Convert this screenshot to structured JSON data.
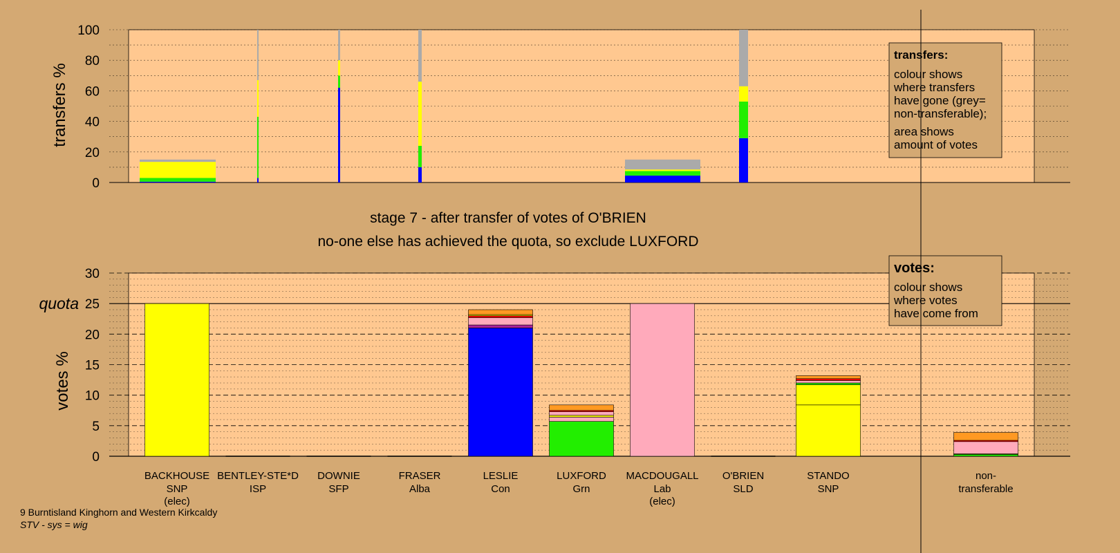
{
  "chart_data": [
    {
      "type": "bar",
      "title": "",
      "ylabel": "transfers %",
      "ylim": [
        0,
        100
      ],
      "yticks": [
        "0",
        "20",
        "40",
        "60",
        "80",
        "100"
      ],
      "stacked": true,
      "colors_meaning": "colour shows where transfers have gone (grey = non-transferable)",
      "bars": [
        {
          "candidate": "BACKHOUSE",
          "width": "wide",
          "segments": [
            {
              "color": "#0000ff",
              "value": 0.5
            },
            {
              "color": "#22ee00",
              "value": 2.5
            },
            {
              "color": "#ffff00",
              "value": 10.5
            },
            {
              "color": "#aaaaaa",
              "value": 1.5
            }
          ]
        },
        {
          "candidate": "BENTLEY-STE*D",
          "width": "thin",
          "segments": [
            {
              "color": "#0000ff",
              "value": 3
            },
            {
              "color": "#22ee00",
              "value": 40
            },
            {
              "color": "#ffff00",
              "value": 24
            },
            {
              "color": "#aaaaaa",
              "value": 33
            }
          ]
        },
        {
          "candidate": "DOWNIE",
          "width": "thin",
          "segments": [
            {
              "color": "#0000ff",
              "value": 62
            },
            {
              "color": "#22ee00",
              "value": 8
            },
            {
              "color": "#ffff00",
              "value": 10
            },
            {
              "color": "#aaaaaa",
              "value": 20
            }
          ]
        },
        {
          "candidate": "FRASER",
          "width": "thin",
          "segments": [
            {
              "color": "#0000ff",
              "value": 10
            },
            {
              "color": "#22ee00",
              "value": 14
            },
            {
              "color": "#ffff00",
              "value": 42
            },
            {
              "color": "#aaaaaa",
              "value": 34
            }
          ]
        },
        {
          "candidate": "MACDOUGALL",
          "width": "wide",
          "segments": [
            {
              "color": "#0000ff",
              "value": 4.5
            },
            {
              "color": "#22ee00",
              "value": 3
            },
            {
              "color": "#ffff00",
              "value": 1
            },
            {
              "color": "#aaaaaa",
              "value": 6.5
            }
          ]
        },
        {
          "candidate": "O'BRIEN",
          "width": "narrow",
          "segments": [
            {
              "color": "#0000ff",
              "value": 29
            },
            {
              "color": "#22ee00",
              "value": 24
            },
            {
              "color": "#ffff00",
              "value": 10
            },
            {
              "color": "#aaaaaa",
              "value": 37
            }
          ]
        }
      ]
    },
    {
      "type": "bar",
      "title": "",
      "ylabel": "votes %",
      "ylim": [
        0,
        30
      ],
      "yticks": [
        "0",
        "5",
        "10",
        "15",
        "20",
        "25",
        "30"
      ],
      "quota": {
        "label": "quota",
        "value": 25
      },
      "stacked": true,
      "colors_meaning": "colour shows where votes have come from",
      "categories": [
        "BACKHOUSE",
        "BENTLEY-STE*D",
        "DOWNIE",
        "FRASER",
        "LESLIE",
        "LUXFORD",
        "MACDOUGALL",
        "O'BRIEN",
        "STANDO",
        "non-transferable"
      ],
      "bars": [
        {
          "candidate": "BACKHOUSE",
          "segments": [
            {
              "color": "#ffff00",
              "value": 25
            }
          ]
        },
        {
          "candidate": "BENTLEY-STE*D",
          "segments": []
        },
        {
          "candidate": "DOWNIE",
          "segments": []
        },
        {
          "candidate": "FRASER",
          "segments": []
        },
        {
          "candidate": "LESLIE",
          "segments": [
            {
              "color": "#0000ff",
              "value": 21
            },
            {
              "color": "#aa2299",
              "value": 0.5
            },
            {
              "color": "#ffaabb",
              "value": 1.2
            },
            {
              "color": "#ff0000",
              "value": 0.3
            },
            {
              "color": "#ffff00",
              "value": 0.2
            },
            {
              "color": "#ff9922",
              "value": 0.8
            }
          ]
        },
        {
          "candidate": "LUXFORD",
          "segments": [
            {
              "color": "#22ee00",
              "value": 5.7
            },
            {
              "color": "#ffaabb",
              "value": 0.7
            },
            {
              "color": "#ffff00",
              "value": 0.3
            },
            {
              "color": "#ffaabb",
              "value": 0.6
            },
            {
              "color": "#ff0000",
              "value": 0.2
            },
            {
              "color": "#ff9922",
              "value": 0.9
            }
          ]
        },
        {
          "candidate": "MACDOUGALL",
          "segments": [
            {
              "color": "#ffaabb",
              "value": 25
            }
          ]
        },
        {
          "candidate": "O'BRIEN",
          "segments": []
        },
        {
          "candidate": "STANDO",
          "segments": [
            {
              "color": "#ffff00",
              "value": 8.4
            },
            {
              "color": "#ffff00",
              "value": 3.3
            },
            {
              "color": "#22ee00",
              "value": 0.3
            },
            {
              "color": "#ffaabb",
              "value": 0.4
            },
            {
              "color": "#ff0000",
              "value": 0.3
            },
            {
              "color": "#ff9922",
              "value": 0.5
            }
          ]
        },
        {
          "candidate": "non-transferable",
          "segments": [
            {
              "color": "#22ee00",
              "value": 0.3
            },
            {
              "color": "#ffff00",
              "value": 0.1
            },
            {
              "color": "#ffaabb",
              "value": 2.0
            },
            {
              "color": "#ff0000",
              "value": 0.2
            },
            {
              "color": "#ff9922",
              "value": 1.3
            }
          ]
        }
      ]
    }
  ],
  "candidates": [
    {
      "name": "BACKHOUSE",
      "party": "SNP",
      "status": "(elec)"
    },
    {
      "name": "BENTLEY-STE*D",
      "party": "ISP",
      "status": ""
    },
    {
      "name": "DOWNIE",
      "party": "SFP",
      "status": ""
    },
    {
      "name": "FRASER",
      "party": "Alba",
      "status": ""
    },
    {
      "name": "LESLIE",
      "party": "Con",
      "status": ""
    },
    {
      "name": "LUXFORD",
      "party": "Grn",
      "status": ""
    },
    {
      "name": "MACDOUGALL",
      "party": "Lab",
      "status": "(elec)"
    },
    {
      "name": "O'BRIEN",
      "party": "SLD",
      "status": ""
    },
    {
      "name": "STANDO",
      "party": "SNP",
      "status": ""
    }
  ],
  "nontransferable_label": [
    "non-",
    "transferable"
  ],
  "stage_text": "stage 7 - after transfer of votes of O'BRIEN",
  "action_text": "no-one else has achieved the quota, so exclude LUXFORD",
  "legend_transfers": {
    "heading": "transfers:",
    "lines1": [
      "colour shows",
      "where transfers",
      "have gone (grey=",
      "non-transferable);"
    ],
    "lines2": [
      "area shows",
      "amount of votes"
    ]
  },
  "legend_votes": {
    "heading": "votes:",
    "lines": [
      "colour shows",
      "where votes",
      "have come from"
    ]
  },
  "footer": {
    "ward": "9 Burntisland Kinghorn and Western Kirkcaldy",
    "system": "STV - sys = wig"
  }
}
